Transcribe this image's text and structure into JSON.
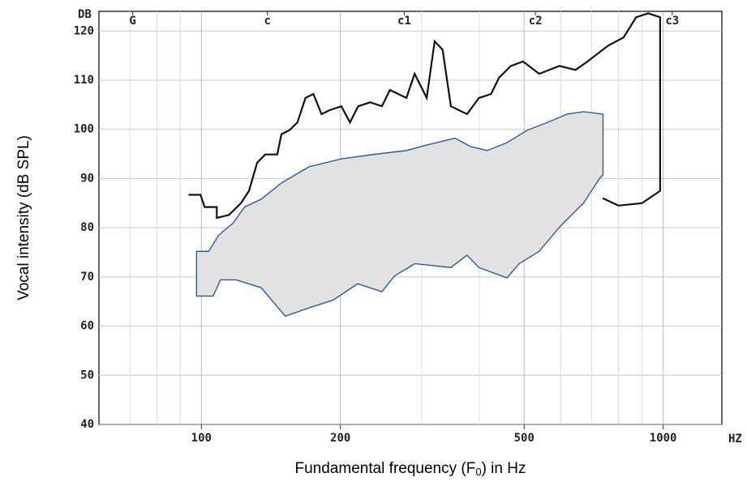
{
  "chart_data": {
    "type": "line",
    "y_label": "Vocal intensity (dB SPL)",
    "x_label": {
      "text": "Fundamental frequency (F",
      "subscript": "0",
      "tail": ") in Hz"
    },
    "y_unit": "DB",
    "x_unit": "HZ",
    "xscale": "log",
    "grid": true,
    "xlim": [
      60,
      1340
    ],
    "ylim": [
      40,
      124
    ],
    "xticks": [
      100,
      200,
      500,
      1000
    ],
    "xminor": [
      70,
      80,
      90,
      300,
      400,
      600,
      700,
      800,
      900
    ],
    "yticks": [
      40,
      50,
      60,
      70,
      80,
      90,
      100,
      110,
      120
    ],
    "notes": {
      "labels": [
        "G",
        "c",
        "c1",
        "c2",
        "c3"
      ],
      "x": [
        71,
        139,
        275,
        529,
        1046
      ]
    },
    "series": [
      {
        "color": "#1f4f8f",
        "fill": "#e2e2e2",
        "x": [
          103.7,
          109,
          117,
          124,
          134.7,
          149,
          171,
          201,
          236,
          278,
          307,
          354,
          383,
          416,
          459,
          507,
          561,
          620,
          672,
          741,
          741,
          728,
          672,
          633,
          596,
          539,
          488,
          459,
          399,
          376,
          347,
          290,
          262,
          246,
          218,
          193,
          171,
          152,
          134.7,
          119,
          110,
          106,
          97.6,
          97.6,
          103.7
        ],
        "values": [
          75.2,
          78.5,
          80.9,
          84.2,
          85.8,
          89.1,
          92.4,
          94,
          94.9,
          95.7,
          96.8,
          98.2,
          96.5,
          95.7,
          97.3,
          99.8,
          101.4,
          103.1,
          103.6,
          103.1,
          90.8,
          90,
          85,
          82.6,
          80.1,
          75.2,
          72.7,
          69.8,
          71.9,
          74.4,
          71.9,
          72.7,
          70.2,
          67,
          68.6,
          65.3,
          63.7,
          62,
          67.8,
          69.4,
          69.4,
          66.1,
          66.1,
          75.2,
          75.2
        ]
      },
      {
        "color": "#111111",
        "x": [
          93.8,
          99.6,
          101.6,
          108,
          108,
          114.7,
          121.8,
          126.8,
          132,
          137.5,
          146,
          149,
          155,
          161.4,
          168,
          174.8,
          182,
          189.6,
          201,
          209.8,
          218.5,
          232,
          246,
          256,
          278,
          289.6,
          307.6,
          320,
          333,
          347,
          376,
          399,
          424,
          441,
          468,
          497,
          539,
          596,
          646,
          686,
          759,
          821,
          874,
          928,
          985,
          985,
          900,
          800,
          740
        ],
        "values": [
          86.7,
          86.7,
          84.2,
          84.2,
          82,
          82.6,
          85,
          87.5,
          93.2,
          94.9,
          94.9,
          99,
          99.8,
          101.4,
          106.4,
          107.2,
          103.1,
          103.9,
          104.7,
          101.4,
          104.7,
          105.5,
          104.7,
          108,
          106.4,
          111.3,
          106.4,
          117.9,
          116.2,
          104.7,
          103.1,
          106.4,
          107.2,
          110.5,
          112.9,
          113.8,
          111.3,
          112.9,
          112.1,
          113.8,
          117,
          118.7,
          122.8,
          123.6,
          122.8,
          87.5,
          85,
          84.5,
          86
        ]
      }
    ]
  }
}
